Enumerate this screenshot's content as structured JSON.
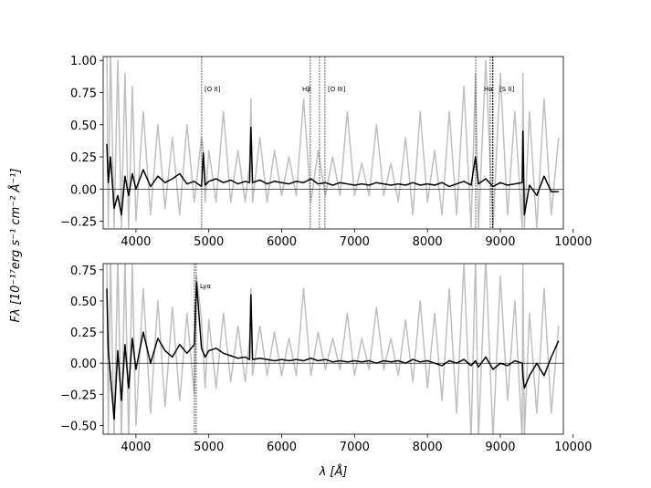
{
  "chart_data": [
    {
      "type": "line",
      "ylabel": "Fλ [10⁻¹⁷erg s⁻¹ cm⁻² Å⁻¹]",
      "x": [
        3600,
        3620,
        3650,
        3700,
        3750,
        3800,
        3850,
        3900,
        3950,
        4000,
        4100,
        4200,
        4300,
        4400,
        4500,
        4600,
        4700,
        4800,
        4900,
        4925,
        4950,
        5000,
        5100,
        5200,
        5300,
        5400,
        5500,
        5560,
        5577,
        5600,
        5700,
        5800,
        5900,
        6000,
        6100,
        6200,
        6300,
        6400,
        6500,
        6600,
        6700,
        6800,
        6900,
        7000,
        7100,
        7200,
        7300,
        7400,
        7500,
        7600,
        7700,
        7800,
        7900,
        8000,
        8100,
        8200,
        8300,
        8400,
        8500,
        8600,
        8660,
        8700,
        8800,
        8900,
        9000,
        9100,
        9200,
        9300,
        9310,
        9330,
        9400,
        9500,
        9600,
        9700,
        9800
      ],
      "series": [
        {
          "color": "#bfbfbf",
          "values": [
            1.1,
            -0.3,
            1.1,
            -0.3,
            1.0,
            -0.3,
            0.9,
            -0.3,
            0.8,
            -0.25,
            0.6,
            -0.2,
            0.5,
            -0.15,
            0.4,
            -0.2,
            0.5,
            -0.1,
            0.4,
            0.3,
            -0.1,
            0.3,
            -0.1,
            0.6,
            -0.1,
            0.3,
            -0.1,
            0.2,
            0.7,
            -0.1,
            0.4,
            -0.1,
            0.3,
            -0.05,
            0.25,
            -0.05,
            0.7,
            -0.1,
            0.3,
            -0.05,
            0.25,
            -0.05,
            0.6,
            -0.05,
            0.2,
            -0.05,
            0.5,
            -0.05,
            0.2,
            -0.1,
            0.4,
            -0.2,
            0.6,
            -0.1,
            0.3,
            -0.2,
            0.6,
            -0.2,
            0.8,
            -0.3,
            0.9,
            -0.3,
            1.0,
            -0.3,
            0.9,
            -0.2,
            0.6,
            -0.3,
            0.9,
            -0.3,
            0.6,
            -0.3,
            0.7,
            -0.2,
            0.4
          ]
        },
        {
          "color": "#000000",
          "values": [
            0.35,
            0.05,
            0.25,
            -0.15,
            -0.05,
            -0.2,
            0.1,
            -0.05,
            0.12,
            0.0,
            0.15,
            0.02,
            0.1,
            0.05,
            0.08,
            0.12,
            0.04,
            0.06,
            0.02,
            0.28,
            0.03,
            0.06,
            0.08,
            0.05,
            0.07,
            0.04,
            0.06,
            0.05,
            0.48,
            0.05,
            0.07,
            0.04,
            0.06,
            0.05,
            0.04,
            0.06,
            0.05,
            0.08,
            0.04,
            0.05,
            0.03,
            0.05,
            0.04,
            0.03,
            0.04,
            0.03,
            0.05,
            0.04,
            0.03,
            0.04,
            0.03,
            0.05,
            0.03,
            0.04,
            0.03,
            0.05,
            0.02,
            0.04,
            0.06,
            0.03,
            0.25,
            0.04,
            0.08,
            0.02,
            0.05,
            0.03,
            0.04,
            0.05,
            0.45,
            -0.2,
            0.03,
            -0.05,
            0.1,
            -0.02,
            -0.02
          ]
        }
      ],
      "hline": 0,
      "vlines": [
        4902,
        6393,
        6519,
        6594,
        8662,
        8862,
        8890,
        8900
      ],
      "annotations": [
        "[O II]",
        "Hβ",
        "[O III]",
        "Hα",
        "[S II]"
      ],
      "xlim": [
        3550,
        9865
      ],
      "ylim": [
        -0.31,
        1.03
      ],
      "xticks": [
        4000,
        5000,
        6000,
        7000,
        8000,
        9000,
        10000
      ],
      "yticks": [
        {
          "value": -0.25,
          "label": "−0.25"
        },
        {
          "value": 0,
          "label": "0.00"
        },
        {
          "value": 0.25,
          "label": "0.25"
        },
        {
          "value": 0.5,
          "label": "0.50"
        },
        {
          "value": 0.75,
          "label": "0.75"
        },
        {
          "value": 1.0,
          "label": "1.00"
        }
      ]
    },
    {
      "type": "line",
      "xlabel": "λ [Å]",
      "x": [
        3600,
        3620,
        3650,
        3700,
        3750,
        3800,
        3850,
        3900,
        3950,
        4000,
        4100,
        4200,
        4300,
        4400,
        4500,
        4600,
        4700,
        4800,
        4830,
        4900,
        4950,
        5000,
        5100,
        5200,
        5300,
        5400,
        5500,
        5560,
        5577,
        5600,
        5700,
        5800,
        5900,
        6000,
        6100,
        6200,
        6300,
        6400,
        6500,
        6600,
        6700,
        6800,
        6900,
        7000,
        7100,
        7200,
        7300,
        7400,
        7500,
        7600,
        7700,
        7800,
        7900,
        8000,
        8100,
        8200,
        8300,
        8400,
        8500,
        8600,
        8660,
        8700,
        8800,
        8900,
        9000,
        9100,
        9200,
        9300,
        9310,
        9330,
        9400,
        9500,
        9600,
        9700,
        9800
      ],
      "series": [
        {
          "color": "#bfbfbf",
          "values": [
            0.85,
            -0.6,
            0.85,
            -0.6,
            0.85,
            -0.6,
            0.85,
            -0.6,
            0.8,
            -0.5,
            0.6,
            -0.4,
            0.5,
            -0.35,
            0.45,
            -0.3,
            0.4,
            -0.25,
            0.7,
            0.35,
            -0.2,
            0.35,
            -0.2,
            0.4,
            -0.15,
            0.3,
            -0.15,
            0.2,
            0.6,
            -0.1,
            0.3,
            -0.1,
            0.25,
            -0.1,
            0.2,
            -0.1,
            0.6,
            -0.1,
            0.25,
            -0.05,
            0.2,
            -0.05,
            0.4,
            -0.1,
            0.2,
            -0.05,
            0.45,
            -0.05,
            0.2,
            -0.1,
            0.35,
            -0.15,
            0.5,
            -0.2,
            0.4,
            -0.3,
            0.6,
            -0.4,
            0.8,
            -0.6,
            0.85,
            -0.6,
            0.85,
            -0.6,
            0.7,
            -0.3,
            0.5,
            -0.6,
            0.8,
            -0.6,
            0.4,
            -0.4,
            0.6,
            -0.4,
            0.3
          ]
        },
        {
          "color": "#000000",
          "values": [
            0.6,
            0.1,
            -0.1,
            -0.45,
            0.1,
            -0.3,
            0.15,
            -0.2,
            0.2,
            -0.05,
            0.25,
            0.0,
            0.2,
            0.1,
            0.05,
            0.15,
            0.08,
            0.15,
            0.65,
            0.12,
            0.05,
            0.1,
            0.12,
            0.08,
            0.06,
            0.04,
            0.05,
            0.03,
            0.55,
            0.03,
            0.04,
            0.03,
            0.02,
            0.03,
            0.02,
            0.03,
            0.02,
            0.04,
            0.02,
            0.03,
            0.01,
            0.02,
            0.01,
            0.02,
            0.01,
            0.02,
            0.0,
            0.02,
            0.01,
            0.02,
            0.0,
            0.03,
            0.01,
            0.02,
            0.0,
            -0.02,
            0.02,
            0.0,
            0.03,
            -0.02,
            0.02,
            -0.03,
            0.05,
            -0.05,
            0.0,
            -0.02,
            0.02,
            0.0,
            -0.1,
            -0.2,
            -0.1,
            0.0,
            -0.1,
            0.05,
            0.18
          ]
        }
      ],
      "hline": 0,
      "vlines": [
        4802,
        4827
      ],
      "annotations": [
        "Lyα"
      ],
      "xlim": [
        3550,
        9865
      ],
      "ylim": [
        -0.57,
        0.8
      ],
      "xticks": [
        4000,
        5000,
        6000,
        7000,
        8000,
        9000,
        10000
      ],
      "yticks": [
        {
          "value": -0.5,
          "label": "−0.50"
        },
        {
          "value": -0.25,
          "label": "−0.25"
        },
        {
          "value": 0,
          "label": "0.00"
        },
        {
          "value": 0.25,
          "label": "0.25"
        },
        {
          "value": 0.5,
          "label": "0.50"
        },
        {
          "value": 0.75,
          "label": "0.75"
        }
      ]
    }
  ]
}
